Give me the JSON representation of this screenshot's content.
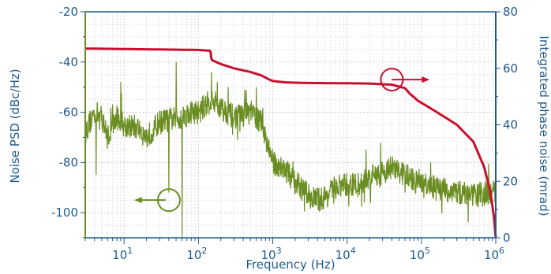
{
  "chart_data": {
    "type": "line",
    "title": "",
    "xlabel": "Frequency (Hz)",
    "ylabel_left": "Noise PSD (dBc/Hz)",
    "ylabel_right": "Integrated phase noise (mrad)",
    "x_scale": "log",
    "xlim": [
      3,
      1000000
    ],
    "ylim_left": [
      -110,
      -20
    ],
    "ylim_right": [
      0,
      80
    ],
    "x_tick_labels": [
      {
        "base": "10",
        "exp": "1",
        "value": 10
      },
      {
        "base": "10",
        "exp": "2",
        "value": 100
      },
      {
        "base": "10",
        "exp": "3",
        "value": 1000
      },
      {
        "base": "10",
        "exp": "4",
        "value": 10000
      },
      {
        "base": "10",
        "exp": "5",
        "value": 100000
      },
      {
        "base": "10",
        "exp": "6",
        "value": 1000000
      }
    ],
    "y_left_ticks": [
      {
        "label": "-20",
        "value": -20
      },
      {
        "label": "-40",
        "value": -40
      },
      {
        "label": "-60",
        "value": -60
      },
      {
        "label": "-80",
        "value": -80
      },
      {
        "label": "-100",
        "value": -100
      }
    ],
    "y_right_ticks": [
      {
        "label": "80",
        "value": 80
      },
      {
        "label": "60",
        "value": 60
      },
      {
        "label": "40",
        "value": 40
      },
      {
        "label": "20",
        "value": 20
      },
      {
        "label": "0",
        "value": 0
      }
    ],
    "grid": true,
    "series": [
      {
        "axis": "left",
        "color": "#6b8e23",
        "noise_amplitude_db": 5,
        "points": [
          [
            3,
            -68
          ],
          [
            4,
            -60
          ],
          [
            5,
            -62
          ],
          [
            6,
            -70
          ],
          [
            8,
            -62
          ],
          [
            10,
            -65
          ],
          [
            15,
            -66
          ],
          [
            20,
            -70
          ],
          [
            30,
            -64
          ],
          [
            40,
            -63
          ],
          [
            60,
            -62
          ],
          [
            80,
            -60
          ],
          [
            100,
            -60
          ],
          [
            150,
            -55
          ],
          [
            200,
            -58
          ],
          [
            300,
            -62
          ],
          [
            500,
            -60
          ],
          [
            700,
            -64
          ],
          [
            900,
            -75
          ],
          [
            1000,
            -80
          ],
          [
            1500,
            -83
          ],
          [
            2000,
            -88
          ],
          [
            3000,
            -93
          ],
          [
            4000,
            -95
          ],
          [
            5000,
            -94
          ],
          [
            7000,
            -90
          ],
          [
            10000,
            -89
          ],
          [
            15000,
            -89
          ],
          [
            20000,
            -86
          ],
          [
            30000,
            -84
          ],
          [
            40000,
            -82
          ],
          [
            60000,
            -85
          ],
          [
            100000,
            -89
          ],
          [
            200000,
            -91
          ],
          [
            500000,
            -93
          ],
          [
            1000000,
            -92
          ]
        ],
        "spikes": [
          [
            50,
            -40
          ],
          [
            60,
            -110
          ],
          [
            40,
            -92
          ],
          [
            150,
            -44
          ],
          [
            180,
            -48
          ],
          [
            250,
            -50
          ],
          [
            420,
            -51
          ],
          [
            600,
            -50
          ],
          [
            4.2,
            -85
          ],
          [
            9,
            -48
          ],
          [
            18000,
            -75
          ],
          [
            600000,
            -93
          ]
        ]
      },
      {
        "axis": "right",
        "color": "#c8102e",
        "points": [
          [
            3,
            67
          ],
          [
            100,
            66.5
          ],
          [
            145,
            66.2
          ],
          [
            150,
            63
          ],
          [
            200,
            61.5
          ],
          [
            300,
            60
          ],
          [
            500,
            58.7
          ],
          [
            700,
            57.5
          ],
          [
            900,
            56
          ],
          [
            1000,
            55.5
          ],
          [
            1500,
            55
          ],
          [
            3000,
            54.8
          ],
          [
            10000,
            54.7
          ],
          [
            20000,
            54.6
          ],
          [
            40000,
            54.2
          ],
          [
            60000,
            53
          ],
          [
            70000,
            51
          ],
          [
            90000,
            48.5
          ],
          [
            150000,
            45
          ],
          [
            300000,
            40
          ],
          [
            500000,
            34
          ],
          [
            700000,
            25
          ],
          [
            850000,
            16
          ],
          [
            950000,
            7
          ],
          [
            1000000,
            0
          ]
        ]
      }
    ],
    "annotations": [
      {
        "type": "circle-arrow",
        "series": 0,
        "x": 40,
        "y": -95,
        "direction": "left",
        "axis": "left"
      },
      {
        "type": "circle-arrow",
        "series": 1,
        "x": 40000,
        "y": 56,
        "direction": "right",
        "axis": "right"
      }
    ]
  }
}
